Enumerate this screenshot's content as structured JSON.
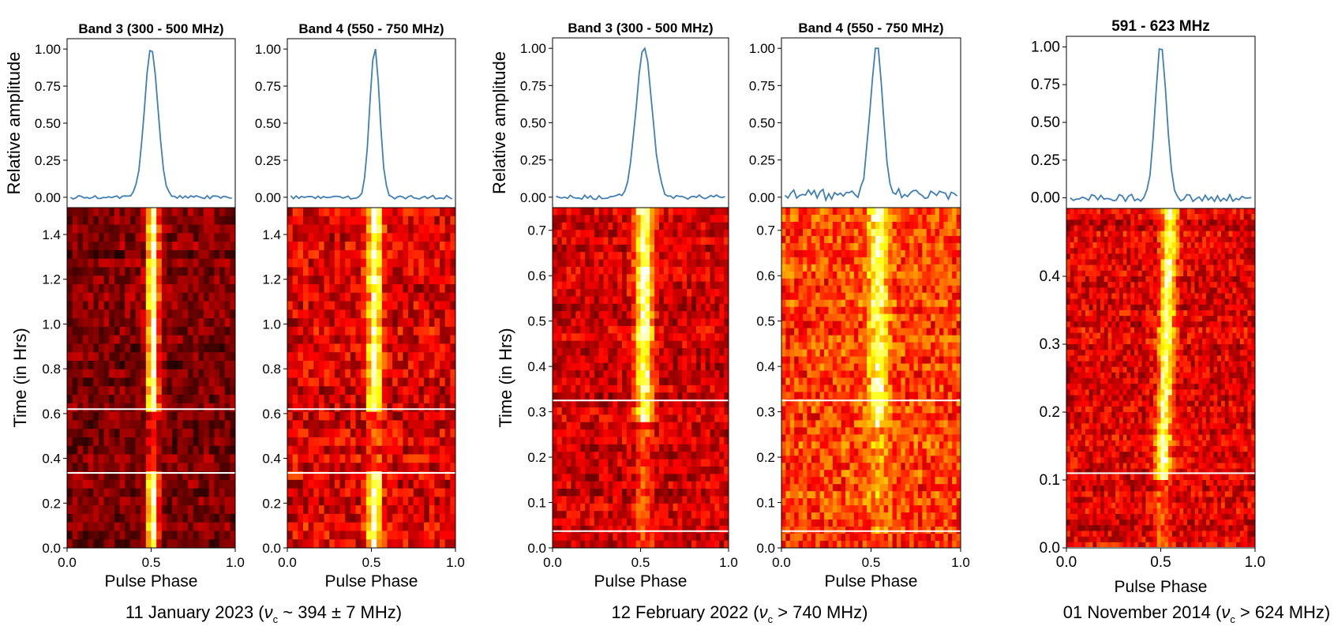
{
  "figure": {
    "ylabel_profile": "Relative amplitude",
    "ylabel_waterfall": "Time (in Hrs)",
    "xlabel": "Pulse Phase",
    "colors": {
      "profile_line": "#3f7fb5",
      "cut_line": "#ffffff",
      "axes": "#000000"
    },
    "colormap": "hot",
    "groups": [
      {
        "caption_pre": "11 January 2023 (",
        "nu": "ν",
        "sub": "c",
        "caption_post": " ~ 394 ± 7 MHz)"
      },
      {
        "caption_pre": "12 February 2022 (",
        "nu": "ν",
        "sub": "c",
        "caption_post": " > 740 MHz)"
      },
      {
        "caption_pre": "01 November 2014 (",
        "nu": "ν",
        "sub": "c",
        "caption_post": " > 624 MHz)"
      }
    ]
  },
  "chart_data": [
    {
      "type": "line+heatmap",
      "title": "Band 3 (300 - 500 MHz)",
      "date": "11 January 2023",
      "xlabel": "Pulse Phase",
      "ylabel_top": "Relative amplitude",
      "ylabel_bottom": "Time (in Hrs)",
      "xlim": [
        0,
        1
      ],
      "ylim_top": [
        -0.07,
        1.07
      ],
      "ylim_bottom": [
        0,
        1.52
      ],
      "xticks": [
        "0.0",
        "0.5",
        "1.0"
      ],
      "yticks_top": [
        "0.00",
        "0.25",
        "0.50",
        "0.75",
        "1.00"
      ],
      "yticks_bottom": [
        "0.0",
        "0.2",
        "0.4",
        "0.6",
        "0.8",
        "1.0",
        "1.2",
        "1.4"
      ],
      "profile": {
        "center": 0.5,
        "width": 0.04,
        "noise": 0.012,
        "baseline": 0.0
      },
      "heatmap": {
        "cols": 32,
        "rows": 40,
        "center": 0.51,
        "width": 0.025,
        "bg": 0.18,
        "bg_spread": 0.1,
        "peak": 0.95,
        "faint_from": 0.33,
        "faint_to": 0.62,
        "drift": 0.0
      },
      "cut_lines": [
        0.62,
        0.335
      ]
    },
    {
      "type": "line+heatmap",
      "title": "Band 4 (550 - 750 MHz)",
      "date": "11 January 2023",
      "xlabel": "Pulse Phase",
      "xlim": [
        0,
        1
      ],
      "ylim_top": [
        -0.07,
        1.07
      ],
      "ylim_bottom": [
        0,
        1.52
      ],
      "xticks": [
        "0.0",
        "0.5",
        "1.0"
      ],
      "yticks_top": [
        "0.00",
        "0.25",
        "0.50",
        "0.75",
        "1.00"
      ],
      "yticks_bottom": [
        "0.0",
        "0.2",
        "0.4",
        "0.6",
        "0.8",
        "1.0",
        "1.2",
        "1.4"
      ],
      "profile": {
        "center": 0.52,
        "width": 0.03,
        "noise": 0.012,
        "baseline": 0.0
      },
      "heatmap": {
        "cols": 32,
        "rows": 40,
        "center": 0.52,
        "width": 0.03,
        "bg": 0.32,
        "bg_spread": 0.14,
        "peak": 0.92,
        "faint_from": 0.33,
        "faint_to": 0.62,
        "drift": 0.0
      },
      "cut_lines": [
        0.62,
        0.335
      ]
    },
    {
      "type": "line+heatmap",
      "title": "Band 3 (300 - 500 MHz)",
      "date": "12 February 2022",
      "xlabel": "Pulse Phase",
      "ylabel_top": "Relative amplitude",
      "ylabel_bottom": "Time (in Hrs)",
      "xlim": [
        0,
        1
      ],
      "ylim_top": [
        -0.07,
        1.07
      ],
      "ylim_bottom": [
        0,
        0.75
      ],
      "xticks": [
        "0.0",
        "0.5",
        "1.0"
      ],
      "yticks_top": [
        "0.00",
        "0.25",
        "0.50",
        "0.75",
        "1.00"
      ],
      "yticks_bottom": [
        "0.0",
        "0.1",
        "0.2",
        "0.3",
        "0.4",
        "0.5",
        "0.6",
        "0.7"
      ],
      "profile": {
        "center": 0.52,
        "width": 0.045,
        "noise": 0.015,
        "baseline": 0.0
      },
      "heatmap": {
        "cols": 38,
        "rows": 46,
        "center": 0.52,
        "width": 0.035,
        "bg": 0.3,
        "bg_spread": 0.12,
        "peak": 0.92,
        "faint_from": 0.0,
        "faint_to": 0.27,
        "drift": 0.0
      },
      "cut_lines": [
        0.325,
        0.037
      ]
    },
    {
      "type": "line+heatmap",
      "title": "Band 4 (550 - 750 MHz)",
      "date": "12 February 2022",
      "xlabel": "Pulse Phase",
      "xlim": [
        0,
        1
      ],
      "ylim_top": [
        -0.07,
        1.07
      ],
      "ylim_bottom": [
        0,
        0.75
      ],
      "xticks": [
        "0.0",
        "0.5",
        "1.0"
      ],
      "yticks_top": [
        "0.00",
        "0.25",
        "0.50",
        "0.75",
        "1.00"
      ],
      "yticks_bottom": [
        "0.0",
        "0.1",
        "0.2",
        "0.3",
        "0.4",
        "0.5",
        "0.6",
        "0.7"
      ],
      "profile": {
        "center": 0.53,
        "width": 0.035,
        "noise": 0.03,
        "baseline": 0.03
      },
      "heatmap": {
        "cols": 42,
        "rows": 48,
        "center": 0.54,
        "width": 0.04,
        "bg": 0.45,
        "bg_spread": 0.15,
        "peak": 0.85,
        "faint_from": 0.0,
        "faint_to": 0.27,
        "drift": 0.0
      },
      "cut_lines": [
        0.325,
        0.037
      ]
    },
    {
      "type": "line+heatmap",
      "title": "591 - 623 MHz",
      "date": "01 November 2014",
      "xlabel": "Pulse Phase",
      "xlim": [
        0,
        1
      ],
      "ylim_top": [
        -0.07,
        1.07
      ],
      "ylim_bottom": [
        0,
        0.5
      ],
      "xticks": [
        "0.0",
        "0.5",
        "1.0"
      ],
      "yticks_top": [
        "0.00",
        "0.25",
        "0.50",
        "0.75",
        "1.00"
      ],
      "yticks_bottom": [
        "0.0",
        "0.1",
        "0.2",
        "0.3",
        "0.4"
      ],
      "profile": {
        "center": 0.5,
        "width": 0.03,
        "noise": 0.025,
        "baseline": 0.0
      },
      "heatmap": {
        "cols": 50,
        "rows": 60,
        "center": 0.5,
        "width": 0.028,
        "bg": 0.33,
        "bg_spread": 0.13,
        "peak": 0.9,
        "faint_from": 0.0,
        "faint_to": 0.1,
        "drift": 0.05
      },
      "cut_lines": [
        0.11,
        0.0
      ]
    }
  ]
}
